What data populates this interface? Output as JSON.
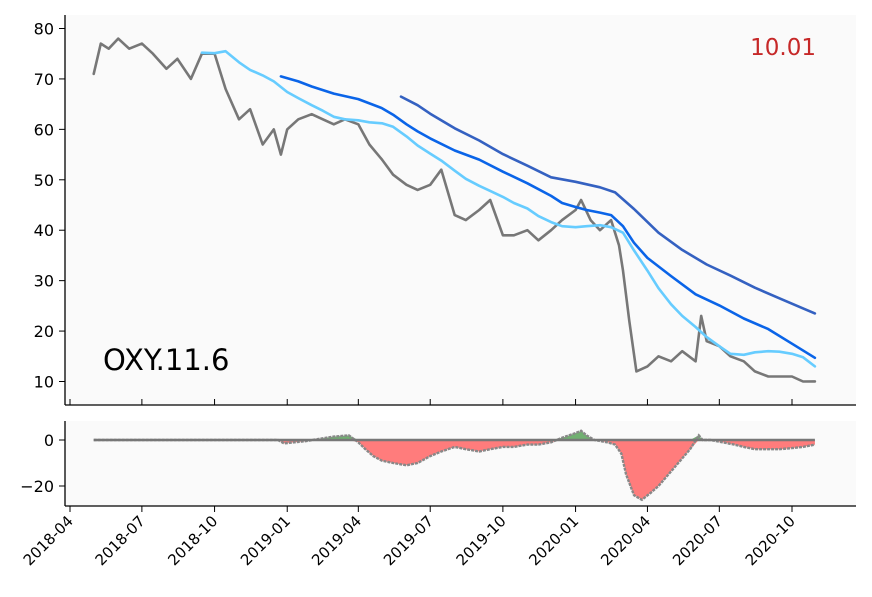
{
  "chart_data": [
    {
      "type": "line",
      "title": "",
      "annotation_left": "OXY.11.6",
      "annotation_right": "10.01",
      "xlabel": "",
      "ylabel": "",
      "ylim": [
        5,
        83
      ],
      "yticks": [
        "10",
        "20",
        "30",
        "40",
        "50",
        "60",
        "70",
        "80"
      ],
      "xticks": [
        "2018-04",
        "2018-07",
        "2018-10",
        "2019-01",
        "2019-04",
        "2019-07",
        "2019-10",
        "2020-01",
        "2020-04",
        "2020-07",
        "2020-10"
      ],
      "grid": false,
      "colors": {
        "price": "#777777",
        "ma_short": "#66ccff",
        "ma_mid": "#0a64e8",
        "ma_long": "#3461c1",
        "annotation_right": "#c62828",
        "background": "#fafafa"
      },
      "series": [
        {
          "key": "price",
          "x": [
            "2018-05-01",
            "2018-05-10",
            "2018-05-20",
            "2018-06-01",
            "2018-06-15",
            "2018-07-01",
            "2018-07-15",
            "2018-08-01",
            "2018-08-15",
            "2018-09-01",
            "2018-09-15",
            "2018-10-01",
            "2018-10-15",
            "2018-11-01",
            "2018-11-15",
            "2018-12-01",
            "2018-12-15",
            "2018-12-24",
            "2019-01-01",
            "2019-01-15",
            "2019-02-01",
            "2019-02-15",
            "2019-03-01",
            "2019-03-15",
            "2019-04-01",
            "2019-04-15",
            "2019-05-01",
            "2019-05-15",
            "2019-06-01",
            "2019-06-15",
            "2019-07-01",
            "2019-07-15",
            "2019-08-01",
            "2019-08-15",
            "2019-09-01",
            "2019-09-15",
            "2019-10-01",
            "2019-10-15",
            "2019-11-01",
            "2019-11-15",
            "2019-12-01",
            "2019-12-15",
            "2020-01-01",
            "2020-01-08",
            "2020-01-20",
            "2020-02-01",
            "2020-02-15",
            "2020-02-25",
            "2020-03-01",
            "2020-03-09",
            "2020-03-18",
            "2020-04-01",
            "2020-04-15",
            "2020-05-01",
            "2020-05-15",
            "2020-06-01",
            "2020-06-08",
            "2020-06-15",
            "2020-07-01",
            "2020-07-15",
            "2020-08-01",
            "2020-08-15",
            "2020-09-01",
            "2020-09-15",
            "2020-10-01",
            "2020-10-15",
            "2020-10-30"
          ],
          "values": [
            71,
            77,
            76,
            78,
            76,
            77,
            75,
            72,
            74,
            70,
            75,
            75,
            68,
            62,
            64,
            57,
            60,
            55,
            60,
            62,
            63,
            62,
            61,
            62,
            61,
            57,
            54,
            51,
            49,
            48,
            49,
            52,
            43,
            42,
            44,
            46,
            39,
            39,
            40,
            38,
            40,
            42,
            44,
            46,
            42,
            40,
            42,
            37,
            32,
            22,
            12,
            13,
            15,
            14,
            16,
            14,
            23,
            18,
            17,
            15,
            14,
            12,
            11,
            11,
            11,
            10,
            10.01
          ]
        },
        {
          "key": "ma_short",
          "x": [
            "2018-09-15",
            "2018-10-01",
            "2018-10-15",
            "2018-11-01",
            "2018-11-15",
            "2018-12-01",
            "2018-12-15",
            "2019-01-01",
            "2019-01-15",
            "2019-02-01",
            "2019-02-15",
            "2019-03-01",
            "2019-03-15",
            "2019-04-01",
            "2019-04-15",
            "2019-05-01",
            "2019-05-15",
            "2019-06-01",
            "2019-06-15",
            "2019-07-01",
            "2019-07-15",
            "2019-08-01",
            "2019-08-15",
            "2019-09-01",
            "2019-09-15",
            "2019-10-01",
            "2019-10-15",
            "2019-11-01",
            "2019-11-15",
            "2019-12-01",
            "2019-12-15",
            "2020-01-01",
            "2020-01-15",
            "2020-02-01",
            "2020-02-15",
            "2020-03-01",
            "2020-03-15",
            "2020-04-01",
            "2020-04-15",
            "2020-05-01",
            "2020-05-15",
            "2020-06-01",
            "2020-06-15",
            "2020-07-01",
            "2020-07-15",
            "2020-08-01",
            "2020-08-15",
            "2020-09-01",
            "2020-09-15",
            "2020-10-01",
            "2020-10-15",
            "2020-10-30"
          ],
          "values": [
            75.2,
            75.1,
            75.5,
            73.3,
            71.8,
            70.7,
            69.5,
            67.4,
            66.2,
            64.8,
            63.7,
            62.5,
            62.0,
            61.8,
            61.4,
            61.2,
            60.5,
            58.6,
            56.8,
            55.2,
            53.8,
            51.8,
            50.2,
            48.8,
            47.8,
            46.6,
            45.4,
            44.3,
            42.8,
            41.6,
            40.8,
            40.6,
            40.8,
            41.0,
            40.6,
            39.5,
            36.0,
            32.0,
            28.5,
            25.3,
            23.0,
            20.8,
            18.8,
            17.0,
            15.5,
            15.3,
            15.8,
            16.0,
            15.9,
            15.5,
            14.8,
            13.0
          ]
        },
        {
          "key": "ma_mid",
          "x": [
            "2018-12-24",
            "2019-01-15",
            "2019-02-01",
            "2019-03-01",
            "2019-04-01",
            "2019-05-01",
            "2019-05-15",
            "2019-06-01",
            "2019-06-15",
            "2019-07-01",
            "2019-08-01",
            "2019-09-01",
            "2019-10-01",
            "2019-11-01",
            "2019-12-01",
            "2019-12-15",
            "2020-01-01",
            "2020-01-15",
            "2020-02-01",
            "2020-02-15",
            "2020-03-01",
            "2020-03-15",
            "2020-04-01",
            "2020-05-01",
            "2020-06-01",
            "2020-07-01",
            "2020-08-01",
            "2020-09-01",
            "2020-10-01",
            "2020-10-30"
          ],
          "values": [
            70.5,
            69.5,
            68.5,
            67.1,
            66.0,
            64.2,
            62.9,
            61.0,
            59.6,
            58.2,
            55.8,
            54.0,
            51.6,
            49.3,
            46.8,
            45.4,
            44.6,
            44.0,
            43.5,
            43.0,
            40.8,
            37.5,
            34.5,
            30.9,
            27.3,
            25.1,
            22.5,
            20.4,
            17.5,
            14.7
          ]
        },
        {
          "key": "ma_long",
          "x": [
            "2019-05-25",
            "2019-06-15",
            "2019-07-01",
            "2019-08-01",
            "2019-09-01",
            "2019-10-01",
            "2019-11-01",
            "2019-12-01",
            "2020-01-01",
            "2020-02-01",
            "2020-02-20",
            "2020-03-15",
            "2020-04-15",
            "2020-05-15",
            "2020-06-15",
            "2020-07-15",
            "2020-08-15",
            "2020-09-15",
            "2020-10-15",
            "2020-10-30"
          ],
          "values": [
            66.5,
            64.8,
            63.1,
            60.2,
            57.8,
            55.1,
            52.8,
            50.5,
            49.6,
            48.5,
            47.5,
            44.2,
            39.5,
            36.1,
            33.2,
            31.0,
            28.6,
            26.5,
            24.5,
            23.5
          ]
        }
      ]
    },
    {
      "type": "area",
      "title": "",
      "xlabel": "",
      "ylabel": "",
      "ylim": [
        -28,
        3.5
      ],
      "yticks": [
        "0",
        "−20"
      ],
      "colors": {
        "positive": "#70b070",
        "negative": "#ff7c7c",
        "line": "#888888",
        "zero": "#777777"
      },
      "series": [
        {
          "key": "diff",
          "x": [
            "2018-05-01",
            "2018-12-20",
            "2018-12-28",
            "2019-01-10",
            "2019-01-25",
            "2019-02-10",
            "2019-03-01",
            "2019-03-20",
            "2019-04-01",
            "2019-04-10",
            "2019-04-20",
            "2019-05-01",
            "2019-05-15",
            "2019-06-01",
            "2019-06-15",
            "2019-07-01",
            "2019-07-15",
            "2019-08-01",
            "2019-08-15",
            "2019-09-01",
            "2019-09-15",
            "2019-10-01",
            "2019-10-15",
            "2019-11-01",
            "2019-11-15",
            "2019-12-01",
            "2019-12-15",
            "2020-01-01",
            "2020-01-08",
            "2020-01-15",
            "2020-01-25",
            "2020-02-10",
            "2020-02-20",
            "2020-02-28",
            "2020-03-05",
            "2020-03-15",
            "2020-03-25",
            "2020-04-05",
            "2020-04-15",
            "2020-04-25",
            "2020-05-05",
            "2020-05-15",
            "2020-05-25",
            "2020-06-05",
            "2020-06-10",
            "2020-06-20",
            "2020-07-05",
            "2020-07-20",
            "2020-08-01",
            "2020-08-15",
            "2020-09-01",
            "2020-09-15",
            "2020-10-01",
            "2020-10-15",
            "2020-10-30"
          ],
          "values": [
            0,
            0,
            -1.5,
            -1,
            -0.5,
            0.5,
            1.5,
            2,
            -1,
            -4,
            -7,
            -9,
            -10,
            -11,
            -10,
            -7,
            -5,
            -3,
            -4,
            -5,
            -4,
            -3,
            -3,
            -2,
            -2,
            -1,
            1,
            3,
            4,
            2,
            0,
            -1,
            -2,
            -6,
            -15,
            -24,
            -26,
            -23,
            -20,
            -16,
            -12,
            -8,
            -4,
            2,
            0,
            0,
            -1,
            -2,
            -3,
            -4,
            -4,
            -4,
            -3.5,
            -3,
            -2
          ]
        }
      ]
    }
  ]
}
